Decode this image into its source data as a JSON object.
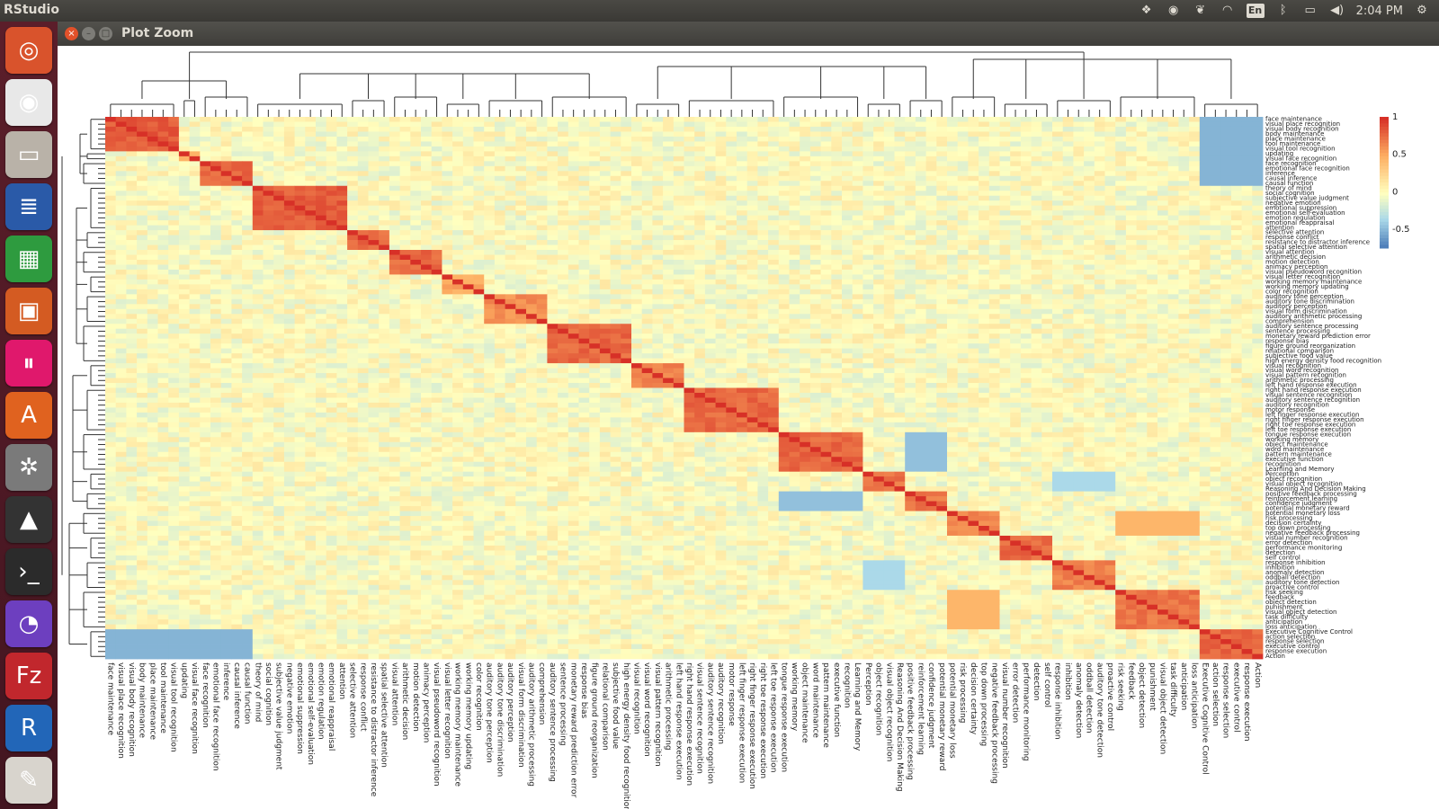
{
  "system": {
    "app_name": "RStudio",
    "lang_indicator": "En",
    "clock": "2:04 PM",
    "tray_icons": [
      "dropbox-icon",
      "chrome-icon",
      "evernote-icon",
      "wifi-icon",
      "keyboard-icon",
      "bluetooth-icon",
      "battery-icon",
      "volume-icon"
    ]
  },
  "launcher": {
    "items": [
      {
        "name": "ubuntu-dash-icon",
        "glyph": "◎",
        "color": "#d9532c"
      },
      {
        "name": "chrome-icon",
        "glyph": "◉",
        "color": "#e8e8e8"
      },
      {
        "name": "files-icon",
        "glyph": "▭",
        "color": "#b9b2a8"
      },
      {
        "name": "writer-icon",
        "glyph": "≣",
        "color": "#2a5aa8"
      },
      {
        "name": "calc-icon",
        "glyph": "▦",
        "color": "#2e9b3f"
      },
      {
        "name": "impress-icon",
        "glyph": "▣",
        "color": "#d45b22"
      },
      {
        "name": "music-icon",
        "glyph": "⏸",
        "color": "#e0186c"
      },
      {
        "name": "software-center-icon",
        "glyph": "A",
        "color": "#e0621f"
      },
      {
        "name": "settings-icon",
        "glyph": "✲",
        "color": "#7a7a7a"
      },
      {
        "name": "inkscape-icon",
        "glyph": "▲",
        "color": "#333333"
      },
      {
        "name": "terminal-icon",
        "glyph": "›_",
        "color": "#2b2b2b"
      },
      {
        "name": "color-wheel-icon",
        "glyph": "◔",
        "color": "#6d3fbf"
      },
      {
        "name": "filezilla-icon",
        "glyph": "Fz",
        "color": "#c1272d"
      },
      {
        "name": "r-icon",
        "glyph": "R",
        "color": "#2266b8"
      },
      {
        "name": "text-editor-icon",
        "glyph": "✎",
        "color": "#d8d4cd"
      }
    ]
  },
  "window": {
    "title": "Plot Zoom",
    "controls": [
      "close",
      "minimize",
      "maximize"
    ]
  },
  "chart_data": {
    "type": "heatmap",
    "title": "",
    "colorbar": {
      "ticks": [
        "1",
        "0.5",
        "0",
        "-0.5"
      ],
      "tick_values": [
        1,
        0.5,
        0,
        -0.5
      ],
      "range": [
        -0.75,
        1
      ],
      "colors": [
        "#4575b4",
        "#abd9e9",
        "#ffffbf",
        "#fdae61",
        "#d73027"
      ]
    },
    "labels": [
      "face maintenance",
      "visual place recognition",
      "visual body recognition",
      "body maintenance",
      "place maintenance",
      "tool maintenance",
      "visual tool recognition",
      "updating",
      "visual face recognition",
      "face recognition",
      "emotional face recognition",
      "inference",
      "causal inference",
      "causal function",
      "theory of mind",
      "social cognition",
      "subjective value judgment",
      "negative emotion",
      "emotional suppression",
      "emotional self-evaluation",
      "emotion regulation",
      "emotional reappraisal",
      "attention",
      "selective attention",
      "response conflict",
      "resistance to distractor inference",
      "spatial selective attention",
      "visual attention",
      "arithmetic decision",
      "motion detection",
      "animacy perception",
      "visual pseudoword recognition",
      "visual letter recognition",
      "working memory maintenance",
      "working memory updating",
      "color recognition",
      "auditory tone perception",
      "auditory tone discrimination",
      "auditory perception",
      "visual form discrimination",
      "auditory arithmetic processing",
      "comprehension",
      "auditory sentence processing",
      "sentence processing",
      "monetary reward prediction error",
      "response bias",
      "figure ground reorganization",
      "relational comparison",
      "subjective food value",
      "high energy density food recognition",
      "visual recognition",
      "visual word recognition",
      "visual pattern recognition",
      "arithmetic processing",
      "left hand response execution",
      "right hand response execution",
      "visual sentence recognition",
      "auditory sentence recognition",
      "auditory recognition",
      "motor response",
      "left finger response execution",
      "right finger response execution",
      "right toe response execution",
      "left toe response execution",
      "tongue response execution",
      "working memory",
      "object maintenance",
      "word maintenance",
      "pattern maintenance",
      "executive function",
      "recognition",
      "Learning and Memory",
      "Perception",
      "object recognition",
      "visual object recognition",
      "Reasoning And Decision Making",
      "positive feedback processing",
      "reinforcement learning",
      "confidence judgment",
      "potential monetary reward",
      "potential monetary loss",
      "risk processing",
      "decision certainty",
      "top down processing",
      "negative feedback processing",
      "visual number recognition",
      "error detection",
      "performance monitoring",
      "detection",
      "self control",
      "response inhibition",
      "inhibition",
      "anomaly detection",
      "oddball detection",
      "auditory tone detection",
      "proactive control",
      "risk seeking",
      "feedback",
      "object detection",
      "punishment",
      "visual object detection",
      "task difficulty",
      "anticipation",
      "loss anticipation",
      "Executive Cognitive Control",
      "action selection",
      "response selection",
      "executive control",
      "response execution",
      "Action"
    ]
  }
}
